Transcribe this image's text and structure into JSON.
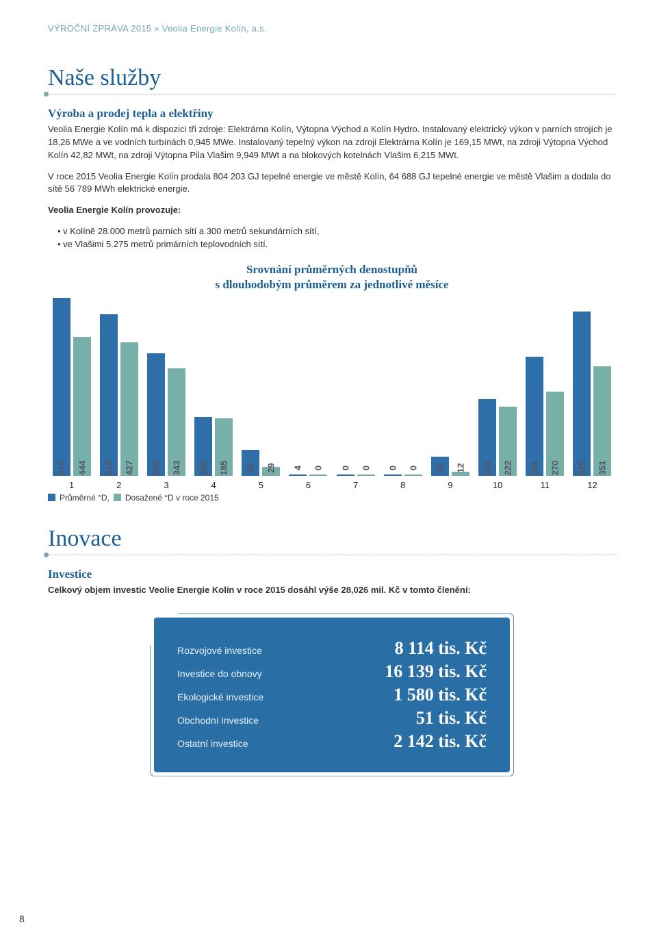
{
  "running_head": "VÝROČNÍ ZPRÁVA 2015 » Veolia Energie Kolín, a.s.",
  "section1": {
    "title": "Naše služby",
    "sub": "Výroba a prodej tepla a elektřiny",
    "p1": "Veolia Energie Kolín má k dispozici tři zdroje: Elektrárna Kolín, Výtopna Východ a Kolín Hydro. Instalovaný elektrický výkon v parních strojích je 18,26 MWe a ve vodních turbínách 0,945 MWe. Instalovaný tepelný výkon na zdroji Elektrárna Kolín je 169,15 MWt, na zdroji Výtopna Východ Kolín 42,82 MWt, na zdroji Výtopna Pila Vlašim 9,949 MWt a na blokových kotelnách Vlašim 6,215 MWt.",
    "p2": "V roce 2015 Veolia Energie Kolín prodala 804 203 GJ tepelné energie ve městě Kolín, 64 688 GJ tepelné energie ve městě Vlašim a dodala do sítě 56 789 MWh elektrické energie.",
    "bold_lead": "Veolia Energie Kolín provozuje:",
    "bullets": [
      "v Kolíně 28.000 metrů parních sítí a 300 metrů sekundárních sítí,",
      "ve Vlašimi 5.275 metrů primárních teplovodních sítí."
    ]
  },
  "chart": {
    "title_l1": "Srovnání průměrných denostupňů",
    "title_l2": "s dlouhodobým průměrem za jednotlivé měsíce",
    "color_a": "#2f6fa9",
    "color_b": "#76b0a8",
    "ylim_max": 570,
    "months": [
      "1",
      "2",
      "3",
      "4",
      "5",
      "6",
      "7",
      "8",
      "9",
      "10",
      "11",
      "12"
    ],
    "series_a": [
      570,
      518,
      393,
      188,
      83,
      4,
      0,
      0,
      61,
      245,
      381,
      525
    ],
    "series_b": [
      444,
      427,
      343,
      185,
      29,
      0,
      0,
      0,
      12,
      222,
      270,
      351
    ],
    "legend_a": "Průměrné °D,",
    "legend_b": "Dosažené °D v roce 2015"
  },
  "section2": {
    "title": "Inovace",
    "sub": "Investice",
    "p": "Celkový objem investic Veolie Energie Kolín v roce 2015 dosáhl výše 28,026 mil. Kč v tomto členění:"
  },
  "invest": {
    "box_bg": "#2a6ea6",
    "rows": [
      {
        "label": "Rozvojové investice",
        "val": "8 114 tis. Kč"
      },
      {
        "label": "Investice do obnovy",
        "val": "16 139 tis. Kč"
      },
      {
        "label": "Ekologické investice",
        "val": "1 580 tis. Kč"
      },
      {
        "label": "Obchodní investice",
        "val": "51 tis. Kč"
      },
      {
        "label": "Ostatní investice",
        "val": "2 142 tis. Kč"
      }
    ]
  },
  "page_number": "8"
}
